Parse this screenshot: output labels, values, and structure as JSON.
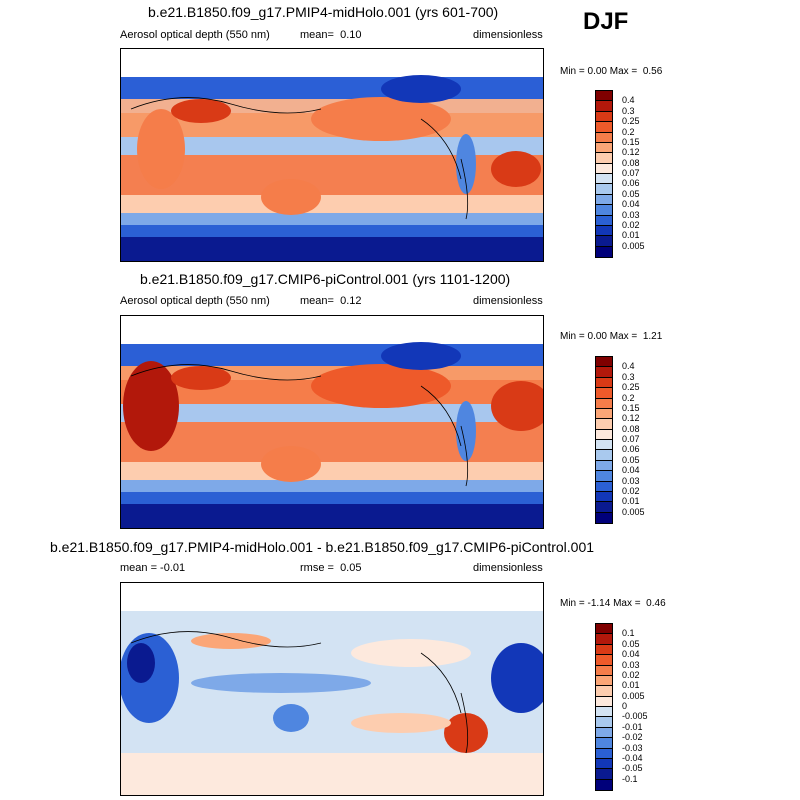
{
  "season": "DJF",
  "panels": [
    {
      "title": "b.e21.B1850.f09_g17.PMIP4-midHolo.001 (yrs 601-700)",
      "left_label": "Aerosol optical depth (550 nm)",
      "center_key": "mean=",
      "center_value": "0.10",
      "right_label": "dimensionless",
      "min_label": "Min =",
      "min_value": "0.00",
      "max_label": "Max =",
      "max_value": "0.56",
      "colorbar_labels": [
        "0.4",
        "0.3",
        "0.25",
        "0.2",
        "0.15",
        "0.12",
        "0.08",
        "0.07",
        "0.06",
        "0.05",
        "0.04",
        "0.03",
        "0.02",
        "0.01",
        "0.005"
      ],
      "colorbar_colors": [
        "#7f0000",
        "#b2180b",
        "#d93a16",
        "#ee5a2a",
        "#f57d4a",
        "#fba677",
        "#fdcdaf",
        "#fde9dd",
        "#d3e3f3",
        "#a9c9ee",
        "#7ea9e8",
        "#4f86e0",
        "#2b60d4",
        "#1237b8",
        "#0a1a90",
        "#00007a"
      ]
    },
    {
      "title": "b.e21.B1850.f09_g17.CMIP6-piControl.001 (yrs 1101-1200)",
      "left_label": "Aerosol optical depth (550 nm)",
      "center_key": "mean=",
      "center_value": "0.12",
      "right_label": "dimensionless",
      "min_label": "Min =",
      "min_value": "0.00",
      "max_label": "Max =",
      "max_value": "1.21",
      "colorbar_labels": [
        "0.4",
        "0.3",
        "0.25",
        "0.2",
        "0.15",
        "0.12",
        "0.08",
        "0.07",
        "0.06",
        "0.05",
        "0.04",
        "0.03",
        "0.02",
        "0.01",
        "0.005"
      ],
      "colorbar_colors": [
        "#7f0000",
        "#b2180b",
        "#d93a16",
        "#ee5a2a",
        "#f57d4a",
        "#fba677",
        "#fdcdaf",
        "#fde9dd",
        "#d3e3f3",
        "#a9c9ee",
        "#7ea9e8",
        "#4f86e0",
        "#2b60d4",
        "#1237b8",
        "#0a1a90",
        "#00007a"
      ]
    },
    {
      "title": "b.e21.B1850.f09_g17.PMIP4-midHolo.001 - b.e21.B1850.f09_g17.CMIP6-piControl.001",
      "left_label": "mean =  -0.01",
      "center_key": "rmse =",
      "center_value": "0.05",
      "right_label": "dimensionless",
      "min_label": "Min =",
      "min_value": "-1.14",
      "max_label": "Max =",
      "max_value": "0.46",
      "colorbar_labels": [
        "0.1",
        "0.05",
        "0.04",
        "0.03",
        "0.02",
        "0.01",
        "0.005",
        "0",
        "-0.005",
        "-0.01",
        "-0.02",
        "-0.03",
        "-0.04",
        "-0.05",
        "-0.1"
      ],
      "colorbar_colors": [
        "#7f0000",
        "#b2180b",
        "#d93a16",
        "#ee5a2a",
        "#f57d4a",
        "#fba677",
        "#fdcdaf",
        "#fde9dd",
        "#d3e3f3",
        "#a9c9ee",
        "#7ea9e8",
        "#4f86e0",
        "#2b60d4",
        "#1237b8",
        "#0a1a90",
        "#00007a"
      ]
    }
  ]
}
